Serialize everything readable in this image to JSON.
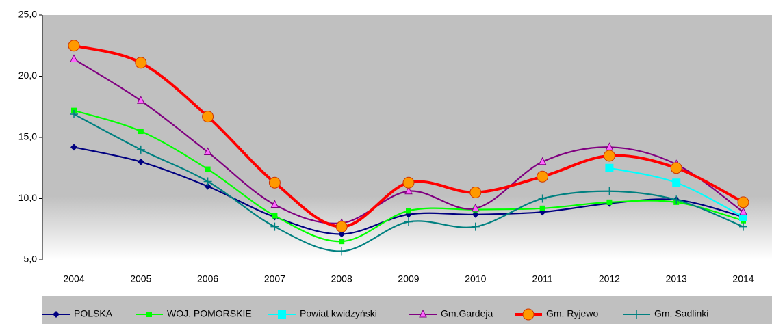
{
  "chart_data": {
    "type": "line",
    "categories": [
      "2004",
      "2005",
      "2006",
      "2007",
      "2008",
      "2009",
      "2010",
      "2011",
      "2012",
      "2013",
      "2014"
    ],
    "ylim": [
      5,
      25
    ],
    "yticks": [
      {
        "value": 5,
        "label": "5,0"
      },
      {
        "value": 10,
        "label": "10,0"
      },
      {
        "value": 15,
        "label": "15,0"
      },
      {
        "value": 20,
        "label": "20,0"
      },
      {
        "value": 25,
        "label": "25,0"
      }
    ],
    "smooth": true,
    "legend": "bottom",
    "series": [
      {
        "name": "POLSKA",
        "color": "#000080",
        "marker": "diamond",
        "values": [
          14.2,
          13.0,
          11.0,
          8.5,
          7.1,
          8.7,
          8.7,
          8.9,
          9.6,
          9.9,
          8.5
        ]
      },
      {
        "name": "WOJ. POMORSKIE",
        "color": "#00ff00",
        "marker": "square",
        "values": [
          17.2,
          15.5,
          12.4,
          8.6,
          6.5,
          9.0,
          9.1,
          9.2,
          9.7,
          9.7,
          8.2
        ]
      },
      {
        "name": "Powiat kwidzyński",
        "color": "#00ffff",
        "marker": "bigsquare",
        "values": [
          null,
          null,
          null,
          null,
          null,
          null,
          null,
          null,
          12.5,
          11.3,
          8.5
        ]
      },
      {
        "name": "Gm.Gardeja",
        "color": "#800080",
        "marker": "triangle",
        "values": [
          21.4,
          18.0,
          13.8,
          9.5,
          8.0,
          10.6,
          9.2,
          13.0,
          14.2,
          12.8,
          8.9
        ]
      },
      {
        "name": "Gm. Ryjewo",
        "color": "#ff0000",
        "marker": "circle",
        "values": [
          22.5,
          21.1,
          16.7,
          11.3,
          7.7,
          11.3,
          10.5,
          11.8,
          13.5,
          12.5,
          9.7
        ]
      },
      {
        "name": "Gm. Sadlinki",
        "color": "#008080",
        "marker": "plus",
        "values": [
          16.9,
          14.0,
          11.4,
          7.7,
          5.7,
          8.1,
          7.7,
          10.0,
          10.6,
          9.9,
          7.7
        ]
      }
    ]
  }
}
